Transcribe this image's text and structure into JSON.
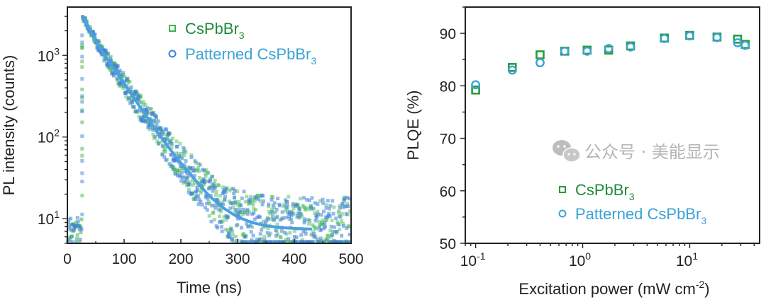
{
  "chart_data": [
    {
      "type": "scatter",
      "title": "",
      "xlabel": "Time (ns)",
      "ylabel": "PL intensity (counts)",
      "xlim": [
        0,
        500
      ],
      "ylim": [
        5,
        3900
      ],
      "yscale": "log",
      "x_ticks": [
        0,
        100,
        200,
        300,
        400,
        500
      ],
      "x_tick_labels": [
        "0",
        "100",
        "200",
        "300",
        "400",
        "500"
      ],
      "y_ticks": [
        10,
        100,
        1000
      ],
      "y_tick_labels": [
        {
          "base": "10",
          "exp": "1"
        },
        {
          "base": "10",
          "exp": "2"
        },
        {
          "base": "10",
          "exp": "3"
        }
      ],
      "legend_position": "top-right",
      "peak_time": 27,
      "peak_counts": 3000,
      "background_counts": 7,
      "series": [
        {
          "name": "CsPbBr",
          "subscript": "3",
          "marker": "square",
          "color": "#3cb44b",
          "text_color": "#1f8a3a"
        },
        {
          "name": "Patterned CsPbBr",
          "subscript": "3",
          "marker": "circle",
          "color": "#3d7fd9",
          "text_color": "#3aa3d6"
        }
      ],
      "fit": {
        "name": "decay fit",
        "color": "#4aa0e0",
        "points": [
          [
            27,
            3000
          ],
          [
            50,
            1500
          ],
          [
            75,
            800
          ],
          [
            100,
            450
          ],
          [
            125,
            250
          ],
          [
            150,
            140
          ],
          [
            175,
            80
          ],
          [
            200,
            48
          ],
          [
            225,
            30
          ],
          [
            250,
            19
          ],
          [
            275,
            13.5
          ],
          [
            300,
            10.5
          ],
          [
            325,
            9
          ],
          [
            350,
            8.2
          ],
          [
            375,
            7.8
          ],
          [
            400,
            7.6
          ],
          [
            425,
            7.5
          ]
        ]
      }
    },
    {
      "type": "scatter",
      "title": "",
      "xlabel": "Excitation power (mW cm",
      "xlabel_sup": "-2",
      "xlabel_end": ")",
      "ylabel": "PLQE (%)",
      "xscale": "log",
      "xlim": [
        0.08,
        45
      ],
      "ylim": [
        50,
        95
      ],
      "x_ticks": [
        0.1,
        1,
        10
      ],
      "x_tick_labels": [
        {
          "base": "10",
          "exp": "-1"
        },
        {
          "base": "10",
          "exp": "0"
        },
        {
          "base": "10",
          "exp": "1"
        }
      ],
      "y_ticks": [
        50,
        60,
        70,
        80,
        90
      ],
      "y_tick_labels": [
        "50",
        "60",
        "70",
        "80",
        "90"
      ],
      "legend_position": "bottom-right",
      "series": [
        {
          "name": "CsPbBr",
          "subscript": "3",
          "marker": "square",
          "color": "#2a9d3a",
          "text_color": "#1f8a3a",
          "x": [
            0.1,
            0.22,
            0.4,
            0.68,
            1.1,
            1.75,
            2.8,
            5.8,
            10,
            18,
            28,
            33
          ],
          "y": [
            79.2,
            83.5,
            85.9,
            86.6,
            86.8,
            86.8,
            87.6,
            89.1,
            89.6,
            89.3,
            88.9,
            87.9
          ]
        },
        {
          "name": "Patterned CsPbBr",
          "subscript": "3",
          "marker": "circle",
          "color": "#3aa3d6",
          "text_color": "#3aa3d6",
          "x": [
            0.1,
            0.22,
            0.4,
            0.68,
            1.1,
            1.75,
            2.8,
            5.8,
            10,
            18,
            28,
            33
          ],
          "y": [
            80.2,
            83.0,
            84.4,
            86.6,
            86.6,
            87.1,
            87.4,
            89.0,
            89.5,
            89.2,
            88.2,
            87.7
          ]
        }
      ]
    }
  ],
  "watermark": {
    "text": "公众号 · 美能显示",
    "icon": "wechat-icon"
  }
}
